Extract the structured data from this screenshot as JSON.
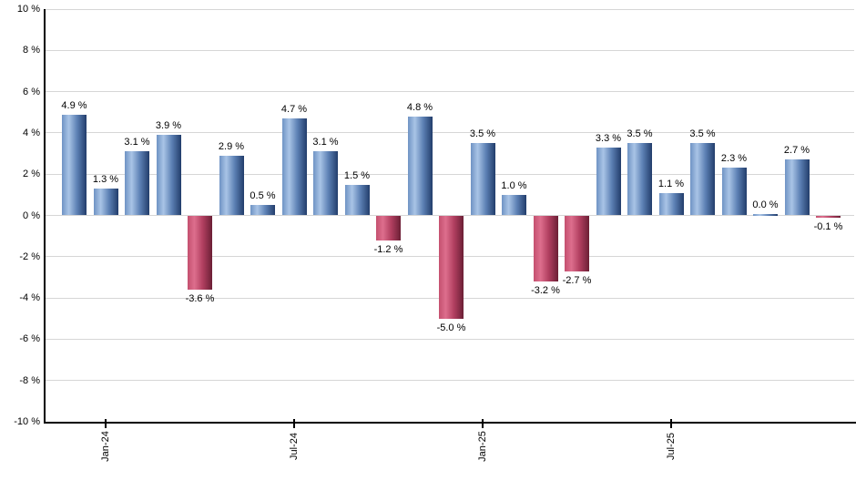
{
  "chart_data": {
    "type": "bar",
    "title": "",
    "xlabel": "",
    "ylabel": "",
    "ylim": [
      -10,
      10
    ],
    "y_tick_step": 2,
    "grid": true,
    "legend": null,
    "y_ticks": [
      "10 %",
      "8 %",
      "6 %",
      "4 %",
      "2 %",
      "0 %",
      "-2 %",
      "-4 %",
      "-6 %",
      "-8 %",
      "-10 %"
    ],
    "x_ticks": [
      {
        "bar_index": 1,
        "label": "Jan-24"
      },
      {
        "bar_index": 7,
        "label": "Jul-24"
      },
      {
        "bar_index": 13,
        "label": "Jan-25"
      },
      {
        "bar_index": 19,
        "label": "Jul-25"
      }
    ],
    "bars": [
      {
        "value": 4.9,
        "label": "4.9 %"
      },
      {
        "value": 1.3,
        "label": "1.3 %"
      },
      {
        "value": 3.1,
        "label": "3.1 %"
      },
      {
        "value": 3.9,
        "label": "3.9 %"
      },
      {
        "value": -3.6,
        "label": "-3.6 %"
      },
      {
        "value": 2.9,
        "label": "2.9 %"
      },
      {
        "value": 0.5,
        "label": "0.5 %"
      },
      {
        "value": 4.7,
        "label": "4.7 %"
      },
      {
        "value": 3.1,
        "label": "3.1 %"
      },
      {
        "value": 1.5,
        "label": "1.5 %"
      },
      {
        "value": -1.2,
        "label": "-1.2 %"
      },
      {
        "value": 4.8,
        "label": "4.8 %"
      },
      {
        "value": -5.0,
        "label": "-5.0 %"
      },
      {
        "value": 3.5,
        "label": "3.5 %"
      },
      {
        "value": 1.0,
        "label": "1.0 %"
      },
      {
        "value": -3.2,
        "label": "-3.2 %"
      },
      {
        "value": -2.7,
        "label": "-2.7 %"
      },
      {
        "value": 3.3,
        "label": "3.3 %"
      },
      {
        "value": 3.5,
        "label": "3.5 %"
      },
      {
        "value": 1.1,
        "label": "1.1 %"
      },
      {
        "value": 3.5,
        "label": "3.5 %"
      },
      {
        "value": 2.3,
        "label": "2.3 %"
      },
      {
        "value": 0.0,
        "label": "0.0 %"
      },
      {
        "value": 2.7,
        "label": "2.7 %"
      },
      {
        "value": -0.1,
        "label": "-0.1 %"
      }
    ],
    "colors": {
      "positive_gradient": [
        "#6f93c4",
        "#a9c4e6",
        "#5c80b4",
        "#223d6b"
      ],
      "negative_gradient": [
        "#c4506f",
        "#dd6e8d",
        "#b03e5f",
        "#6b1f35"
      ],
      "gridline": "#d6d6d6",
      "axis": "#000000",
      "label_text": "#000000"
    }
  }
}
